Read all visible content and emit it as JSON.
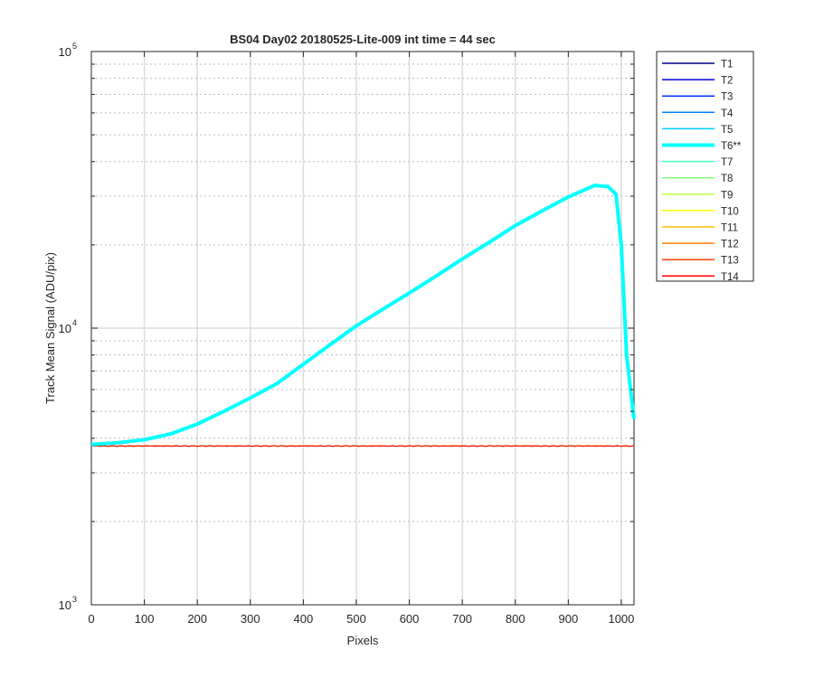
{
  "chart_data": {
    "type": "line",
    "title": "BS04 Day02 20180525-Lite-009 int time = 44 sec",
    "xlabel": "Pixels",
    "ylabel": "Track Mean Signal (ADU/pix)",
    "x_scale": "linear",
    "y_scale": "log",
    "xlim": [
      0,
      1024
    ],
    "ylim": [
      1000,
      100000
    ],
    "x_ticks": [
      0,
      100,
      200,
      300,
      400,
      500,
      600,
      700,
      800,
      900,
      1000
    ],
    "y_ticks": [
      {
        "value": 1000,
        "base": "10",
        "exp": "3"
      },
      {
        "value": 10000,
        "base": "10",
        "exp": "4"
      },
      {
        "value": 100000,
        "base": "10",
        "exp": "5"
      }
    ],
    "grid": true,
    "legend_position": "outside-top-right",
    "series": [
      {
        "name": "T1",
        "color": "#00008f",
        "highlight": false
      },
      {
        "name": "T2",
        "color": "#0000df",
        "highlight": false
      },
      {
        "name": "T3",
        "color": "#0030ff",
        "highlight": false
      },
      {
        "name": "T4",
        "color": "#0080ff",
        "highlight": false
      },
      {
        "name": "T5",
        "color": "#00cfff",
        "highlight": false
      },
      {
        "name": "T6**",
        "color": "#00ffff",
        "highlight": true,
        "x": [
          0,
          50,
          100,
          150,
          200,
          250,
          300,
          350,
          400,
          450,
          500,
          550,
          600,
          650,
          700,
          750,
          800,
          850,
          900,
          950,
          975,
          990,
          1000,
          1010,
          1024
        ],
        "y": [
          3800,
          3850,
          3950,
          4150,
          4500,
          5000,
          5600,
          6300,
          7400,
          8700,
          10200,
          11700,
          13400,
          15400,
          17800,
          20400,
          23500,
          26500,
          29800,
          32800,
          32500,
          30500,
          20000,
          8000,
          4700
        ]
      },
      {
        "name": "T7",
        "color": "#40ffbf",
        "highlight": false
      },
      {
        "name": "T8",
        "color": "#80ff80",
        "highlight": false
      },
      {
        "name": "T9",
        "color": "#bfff40",
        "highlight": false
      },
      {
        "name": "T10",
        "color": "#ffff00",
        "highlight": false
      },
      {
        "name": "T11",
        "color": "#ffbf00",
        "highlight": false
      },
      {
        "name": "T12",
        "color": "#ff8000",
        "highlight": false
      },
      {
        "name": "T13",
        "color": "#ff4000",
        "highlight": false
      },
      {
        "name": "T14",
        "color": "#ff0000",
        "highlight": false
      }
    ],
    "baseline_value": 3750
  }
}
